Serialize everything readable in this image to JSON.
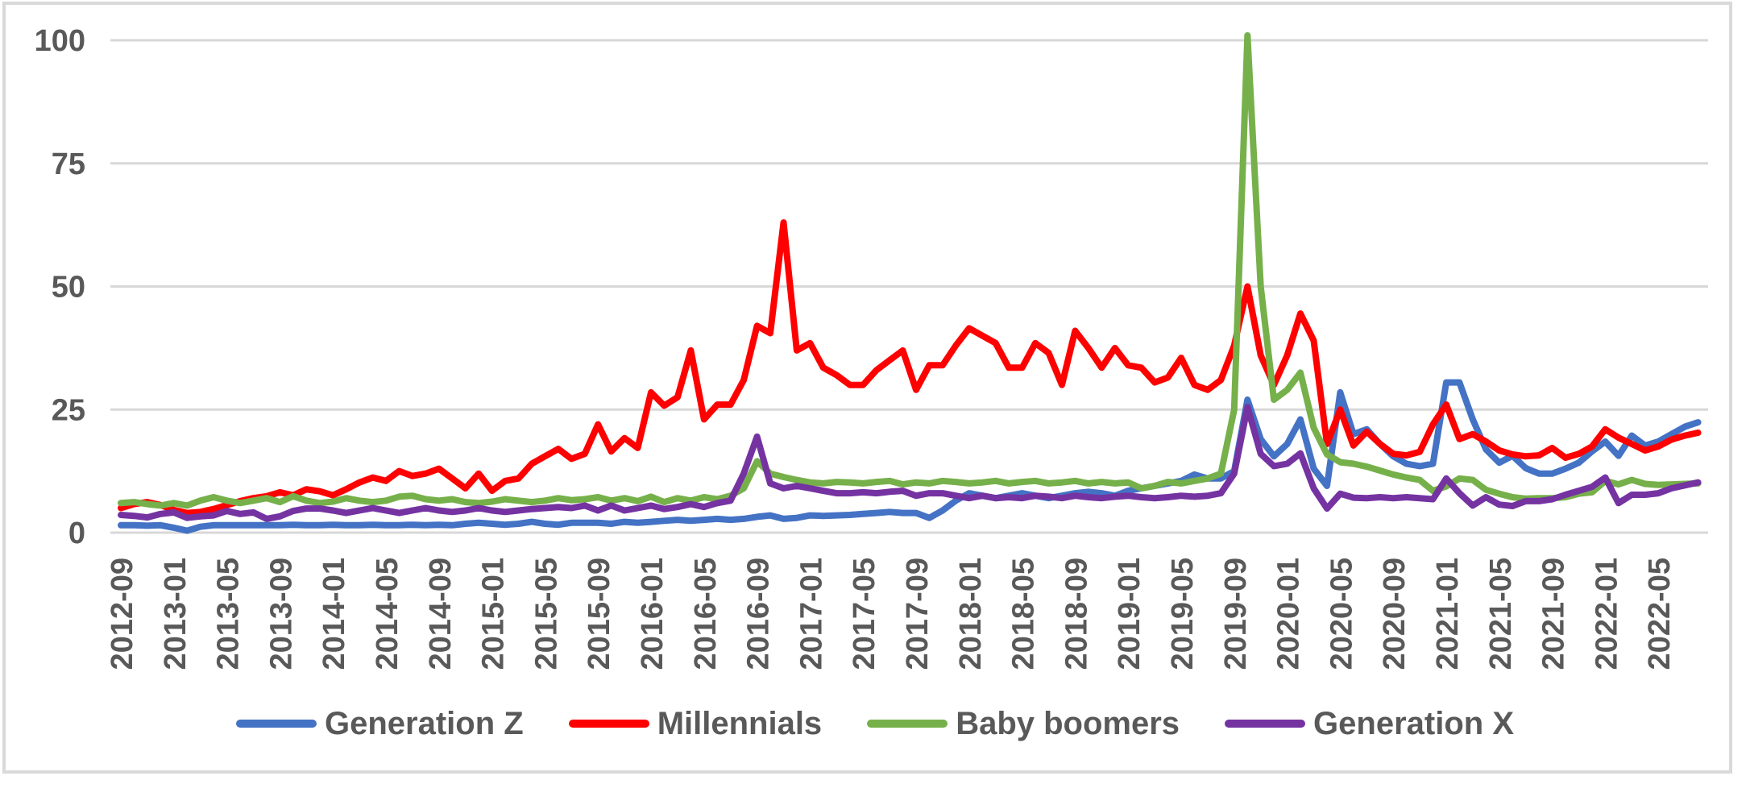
{
  "chart_data": {
    "type": "line",
    "title": "",
    "xlabel": "",
    "ylabel": "",
    "ylim": [
      0,
      100
    ],
    "y_ticks": [
      0,
      25,
      50,
      75,
      100
    ],
    "grid": "horizontal",
    "legend_position": "bottom",
    "x_tick_labels": [
      "2012-09",
      "2013-01",
      "2013-05",
      "2013-09",
      "2014-01",
      "2014-05",
      "2014-09",
      "2015-01",
      "2015-05",
      "2015-09",
      "2016-01",
      "2016-05",
      "2016-09",
      "2017-01",
      "2017-05",
      "2017-09",
      "2018-01",
      "2018-05",
      "2018-09",
      "2019-01",
      "2019-05",
      "2019-09",
      "2020-01",
      "2020-05",
      "2020-09",
      "2021-01",
      "2021-05",
      "2021-09",
      "2022-01",
      "2022-05"
    ],
    "x_months_per_tick": 4,
    "series": [
      {
        "name": "Generation Z",
        "color": "#4472C4",
        "values": [
          1.5,
          1.5,
          1.4,
          1.5,
          1,
          0.4,
          1.2,
          1.5,
          1.5,
          1.5,
          1.5,
          1.5,
          1.5,
          1.6,
          1.5,
          1.5,
          1.6,
          1.5,
          1.5,
          1.6,
          1.5,
          1.5,
          1.6,
          1.5,
          1.6,
          1.5,
          1.8,
          2,
          1.8,
          1.6,
          1.8,
          2.2,
          1.8,
          1.6,
          2,
          2,
          2,
          1.8,
          2.2,
          2,
          2.2,
          2.4,
          2.6,
          2.4,
          2.6,
          2.8,
          2.6,
          2.8,
          3.2,
          3.5,
          2.8,
          3,
          3.5,
          3.4,
          3.5,
          3.6,
          3.8,
          4,
          4.2,
          4,
          4,
          3,
          4.5,
          6.5,
          8,
          7.5,
          7,
          7.5,
          8,
          7.5,
          7,
          7.5,
          8,
          8.3,
          8,
          7.5,
          8.5,
          9,
          9.5,
          10,
          10.5,
          11.8,
          11,
          11,
          12.5,
          27,
          19,
          15.5,
          18,
          23,
          13,
          9.5,
          28.5,
          20,
          21,
          18,
          15.5,
          14,
          13.5,
          14,
          30.5,
          30.5,
          23,
          16.9,
          14.2,
          15.6,
          13.1,
          12,
          12,
          13,
          14.2,
          16.5,
          18.5,
          15.6,
          19.7,
          17.7,
          18.5,
          20,
          21.5,
          22.4
        ]
      },
      {
        "name": "Millennials",
        "color": "#FF0000",
        "values": [
          5,
          5.8,
          6.2,
          5.6,
          4.6,
          4,
          4.2,
          4.8,
          5.6,
          6.4,
          7,
          7.4,
          8.2,
          7.6,
          8.8,
          8.4,
          7.6,
          8.8,
          10.2,
          11.2,
          10.5,
          12.5,
          11.5,
          12,
          13,
          11,
          9,
          12,
          8.5,
          10.5,
          11,
          14,
          15.5,
          17,
          15,
          16,
          22,
          16.5,
          19.2,
          17.2,
          28.5,
          25.8,
          27.5,
          37,
          23,
          26,
          26,
          31,
          42,
          40.5,
          63,
          37,
          38.5,
          33.5,
          32,
          30,
          30,
          33,
          35,
          37,
          29,
          34,
          34,
          38,
          41.5,
          40,
          38.5,
          33.5,
          33.5,
          38.5,
          36.5,
          30,
          41,
          37.5,
          33.5,
          37.5,
          34,
          33.5,
          30.5,
          31.5,
          35.5,
          30,
          29,
          31,
          38,
          50,
          36,
          30,
          36,
          44.5,
          39,
          18,
          25,
          17.7,
          20.5,
          18,
          16,
          15.7,
          16.4,
          22,
          26,
          19,
          20,
          18.5,
          16.7,
          15.9,
          15.5,
          15.7,
          17.2,
          15.2,
          16,
          17.5,
          21,
          19.3,
          18,
          16.7,
          17.5,
          18.9,
          19.7,
          20.3
        ]
      },
      {
        "name": "Baby boomers",
        "color": "#76B04A",
        "values": [
          6,
          6.2,
          5.8,
          5.5,
          6,
          5.5,
          6.5,
          7.2,
          6.5,
          6,
          6.5,
          7,
          6.2,
          7.4,
          6.5,
          6,
          6.3,
          7,
          6.5,
          6.2,
          6.5,
          7.3,
          7.5,
          6.8,
          6.5,
          6.8,
          6.2,
          6,
          6.3,
          6.8,
          6.5,
          6.2,
          6.5,
          7,
          6.6,
          6.8,
          7.2,
          6.5,
          7,
          6.4,
          7.3,
          6.2,
          7,
          6.5,
          7.2,
          6.8,
          7.5,
          9,
          14.5,
          12,
          11.3,
          10.7,
          10.2,
          10,
          10.3,
          10.2,
          10,
          10.3,
          10.5,
          9.8,
          10.2,
          10,
          10.5,
          10.3,
          10,
          10.2,
          10.5,
          10,
          10.3,
          10.5,
          10,
          10.2,
          10.5,
          10,
          10.3,
          10,
          10.2,
          9,
          9.5,
          10.3,
          10,
          10.5,
          11,
          12,
          25,
          101,
          50,
          27,
          29,
          32.5,
          21.3,
          15.9,
          14.3,
          14,
          13.4,
          12.6,
          11.8,
          11.2,
          10.7,
          8.5,
          9.4,
          11,
          10.7,
          8.7,
          7.9,
          7.2,
          6.9,
          7,
          7,
          7.2,
          7.9,
          8.2,
          10.5,
          9.8,
          10.7,
          9.9,
          9.7,
          9.8,
          9.9,
          10
        ]
      },
      {
        "name": "Generation X",
        "color": "#7533A2",
        "values": [
          3.6,
          3.4,
          3.1,
          3.8,
          4.1,
          3,
          3.3,
          3.5,
          4.4,
          3.8,
          4.1,
          2.8,
          3.3,
          4.4,
          4.9,
          4.9,
          4.5,
          4,
          4.5,
          5,
          4.5,
          4,
          4.5,
          5,
          4.5,
          4.2,
          4.5,
          5,
          4.5,
          4.2,
          4.5,
          4.8,
          5,
          5.2,
          5,
          5.5,
          4.5,
          5.5,
          4.5,
          5,
          5.5,
          4.8,
          5.2,
          5.8,
          5.2,
          6,
          6.5,
          12,
          19.5,
          10,
          9,
          9.5,
          9,
          8.5,
          8,
          8,
          8.2,
          8,
          8.3,
          8.5,
          7.5,
          8,
          8,
          7.5,
          7,
          7.5,
          7,
          7.2,
          7,
          7.5,
          7.3,
          7,
          7.5,
          7.2,
          7,
          7.3,
          7.5,
          7.2,
          7,
          7.2,
          7.5,
          7.3,
          7.5,
          8,
          12,
          25.5,
          16,
          13.5,
          14,
          16.1,
          9,
          4.9,
          7.9,
          7.1,
          7,
          7.2,
          7,
          7.2,
          7,
          6.8,
          11,
          8,
          5.5,
          7.2,
          5.7,
          5.4,
          6.4,
          6.4,
          6.8,
          7.7,
          8.5,
          9.3,
          11.2,
          6,
          7.7,
          7.7,
          8,
          9,
          9.6,
          10.2
        ]
      }
    ],
    "colors": {
      "axis_text": "#595959",
      "gridline": "#D8D8D8",
      "frame": "#D9D9D9",
      "background": "#FFFFFF"
    }
  }
}
